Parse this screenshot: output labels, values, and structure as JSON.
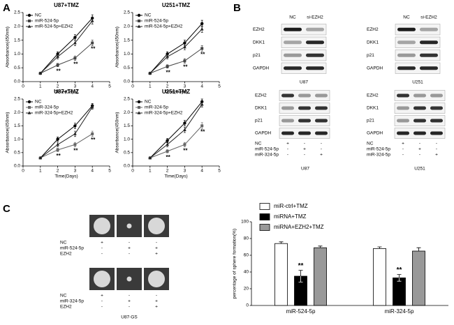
{
  "panel_labels": [
    "A",
    "B",
    "C"
  ],
  "chart_data": [
    {
      "type": "line",
      "title": "U87+TMZ",
      "xlabel": "Time(Days)",
      "ylabel": "Absorbance(450nm)",
      "x": [
        1,
        2,
        3,
        4
      ],
      "xlim": [
        0,
        5
      ],
      "xticks": [
        0,
        1,
        2,
        3,
        4,
        5
      ],
      "ylim": [
        0,
        2.5
      ],
      "yticks": [
        {
          "value": 0,
          "label": "0.0"
        },
        0.5,
        {
          "value": 1,
          "label": "1.0"
        },
        1.5,
        {
          "value": 2,
          "label": "2.0"
        },
        2.5
      ],
      "legend": "upper left",
      "series": [
        {
          "name": "NC",
          "color": "#000000",
          "marker": "circle",
          "values": [
            0.3,
            1.0,
            1.6,
            2.3
          ],
          "errors": [
            0.03,
            0.08,
            0.1,
            0.12
          ]
        },
        {
          "name": "miR-524-5p",
          "color": "#444444",
          "marker": "square",
          "values": [
            0.3,
            0.6,
            0.85,
            1.4
          ],
          "errors": [
            0.03,
            0.06,
            0.08,
            0.1
          ],
          "marks": [
            null,
            "**",
            "**",
            "**"
          ]
        },
        {
          "name": "miR-524-5p+EZH2",
          "color": "#222222",
          "marker": "triangle",
          "values": [
            0.3,
            0.9,
            1.4,
            2.2
          ],
          "errors": [
            0.03,
            0.08,
            0.1,
            0.12
          ]
        }
      ]
    },
    {
      "type": "line",
      "title": "U251+TMZ",
      "xlabel": "Time(Days)",
      "ylabel": "Absorbance(450nm)",
      "x": [
        1,
        2,
        3,
        4
      ],
      "xlim": [
        0,
        5
      ],
      "xticks": [
        0,
        1,
        2,
        3,
        4,
        5
      ],
      "ylim": [
        0,
        2.5
      ],
      "yticks": [
        {
          "value": 0,
          "label": "0.0"
        },
        0.5,
        {
          "value": 1,
          "label": "1.0"
        },
        1.5,
        {
          "value": 2,
          "label": "2.0"
        },
        2.5
      ],
      "legend": "upper left",
      "series": [
        {
          "name": "NC",
          "color": "#000000",
          "marker": "circle",
          "values": [
            0.3,
            1.0,
            1.4,
            2.1
          ],
          "errors": [
            0.03,
            0.08,
            0.1,
            0.12
          ]
        },
        {
          "name": "miR-524-5p",
          "color": "#444444",
          "marker": "square",
          "values": [
            0.3,
            0.55,
            0.75,
            1.2
          ],
          "errors": [
            0.03,
            0.06,
            0.08,
            0.1
          ],
          "marks": [
            null,
            "**",
            "**",
            "**"
          ]
        },
        {
          "name": "miR-524-5p+EZH2",
          "color": "#222222",
          "marker": "triangle",
          "values": [
            0.3,
            0.9,
            1.25,
            1.9
          ],
          "errors": [
            0.03,
            0.08,
            0.1,
            0.12
          ]
        }
      ]
    },
    {
      "type": "line",
      "title": "U87+TMZ",
      "xlabel": "Time(Days)",
      "ylabel": "Absorbance(450nm)",
      "x": [
        1,
        2,
        3,
        4
      ],
      "xlim": [
        0,
        5
      ],
      "xticks": [
        0,
        1,
        2,
        3,
        4,
        5
      ],
      "ylim": [
        0,
        2.5
      ],
      "yticks": [
        {
          "value": 0,
          "label": "0.0"
        },
        0.5,
        {
          "value": 1,
          "label": "1.0"
        },
        1.5,
        {
          "value": 2,
          "label": "2.0"
        },
        2.5
      ],
      "legend": "upper left",
      "series": [
        {
          "name": "NC",
          "color": "#000000",
          "marker": "circle",
          "values": [
            0.3,
            1.0,
            1.5,
            2.25
          ],
          "errors": [
            0.03,
            0.08,
            0.1,
            0.08
          ]
        },
        {
          "name": "miR-324-5p",
          "color": "#666666",
          "marker": "square",
          "values": [
            0.3,
            0.6,
            0.8,
            1.2
          ],
          "errors": [
            0.03,
            0.06,
            0.08,
            0.1
          ],
          "marks": [
            null,
            "**",
            "**",
            "**"
          ]
        },
        {
          "name": "miR-324-5p+EZH2",
          "color": "#222222",
          "marker": "triangle",
          "values": [
            0.3,
            0.8,
            1.2,
            2.2
          ],
          "errors": [
            0.03,
            0.08,
            0.1,
            0.08
          ]
        }
      ]
    },
    {
      "type": "line",
      "title": "U251+TMZ",
      "xlabel": "Time(Days)",
      "ylabel": "Absorbance(450nm)",
      "x": [
        1,
        2,
        3,
        4
      ],
      "xlim": [
        0,
        5
      ],
      "xticks": [
        0,
        1,
        2,
        3,
        4,
        5
      ],
      "ylim": [
        0,
        2.5
      ],
      "yticks": [
        {
          "value": 0,
          "label": "0.0"
        },
        0.5,
        {
          "value": 1,
          "label": "1.0"
        },
        1.5,
        {
          "value": 2,
          "label": "2.0"
        },
        2.5
      ],
      "legend": "upper left",
      "series": [
        {
          "name": "NC",
          "color": "#000000",
          "marker": "circle",
          "values": [
            0.3,
            0.95,
            1.6,
            2.4
          ],
          "errors": [
            0.03,
            0.08,
            0.1,
            0.1
          ]
        },
        {
          "name": "miR-324-5p",
          "color": "#666666",
          "marker": "square",
          "values": [
            0.3,
            0.55,
            0.8,
            1.5
          ],
          "errors": [
            0.03,
            0.06,
            0.08,
            0.12
          ],
          "marks": [
            null,
            "**",
            "**",
            "**"
          ]
        },
        {
          "name": "miR-324-5p+EZH2",
          "color": "#222222",
          "marker": "triangle",
          "values": [
            0.3,
            0.8,
            1.35,
            2.3
          ],
          "errors": [
            0.03,
            0.08,
            0.1,
            0.1
          ]
        }
      ]
    },
    {
      "type": "bar",
      "ylabel": "percentage of sphere formation(%)",
      "categories": [
        "miR-524-5p",
        "miR-324-5p"
      ],
      "ylim": [
        0,
        100
      ],
      "yticks": [
        0,
        20,
        40,
        60,
        80,
        100
      ],
      "legend": "top",
      "series": [
        {
          "name": "miR-ctrl+TMZ",
          "color": "#ffffff",
          "values": [
            74,
            68
          ],
          "errors": [
            2,
            2
          ]
        },
        {
          "name": "miRNA+TMZ",
          "color": "#000000",
          "values": [
            35,
            33
          ],
          "errors": [
            7,
            4
          ],
          "marks": [
            "**",
            "**"
          ]
        },
        {
          "name": "miRNA+EZH2+TMZ",
          "color": "#999999",
          "values": [
            69,
            65
          ],
          "errors": [
            2,
            4
          ]
        }
      ]
    }
  ],
  "blots": [
    {
      "columns": [
        "NC",
        "si-EZH2"
      ],
      "rows": [
        "EZH2",
        "DKK1",
        "p21",
        "GAPDH"
      ],
      "caption": "U87"
    },
    {
      "columns": [
        "NC",
        "si-EZH2"
      ],
      "rows": [
        "EZH2",
        "DKK1",
        "p21",
        "GAPDH"
      ],
      "caption": "U251"
    },
    {
      "rows": [
        "EZH2",
        "DKK1",
        "p21",
        "GAPDH"
      ],
      "caption": "U87",
      "treatments": [
        {
          "name": "NC",
          "signs": [
            "+",
            "-",
            "-"
          ]
        },
        {
          "name": "miR-524-5p",
          "signs": [
            "-",
            "+",
            "-"
          ]
        },
        {
          "name": "miR-324-5p",
          "signs": [
            "-",
            "-",
            "+"
          ]
        }
      ]
    },
    {
      "rows": [
        "EZH2",
        "DKK1",
        "p21",
        "GAPDH"
      ],
      "caption": "U251",
      "treatments": [
        {
          "name": "NC",
          "signs": [
            "+",
            "-",
            "-"
          ]
        },
        {
          "name": "miR-524-5p",
          "signs": [
            "-",
            "+",
            "-"
          ]
        },
        {
          "name": "miR-324-5p",
          "signs": [
            "-",
            "-",
            "+"
          ]
        }
      ]
    }
  ],
  "spheres": {
    "caption": "U87-GS",
    "panels": [
      {
        "treatments": [
          {
            "name": "NC",
            "signs": [
              "+",
              "-",
              "-"
            ]
          },
          {
            "name": "miR-524-5p",
            "signs": [
              "-",
              "+",
              "+"
            ]
          },
          {
            "name": "EZH2",
            "signs": [
              "-",
              "-",
              "+"
            ]
          }
        ]
      },
      {
        "treatments": [
          {
            "name": "NC",
            "signs": [
              "+",
              "-",
              "-"
            ]
          },
          {
            "name": "miR-324-5p",
            "signs": [
              "-",
              "+",
              "+"
            ]
          },
          {
            "name": "EZH2",
            "signs": [
              "-",
              "-",
              "+"
            ]
          }
        ]
      }
    ]
  }
}
